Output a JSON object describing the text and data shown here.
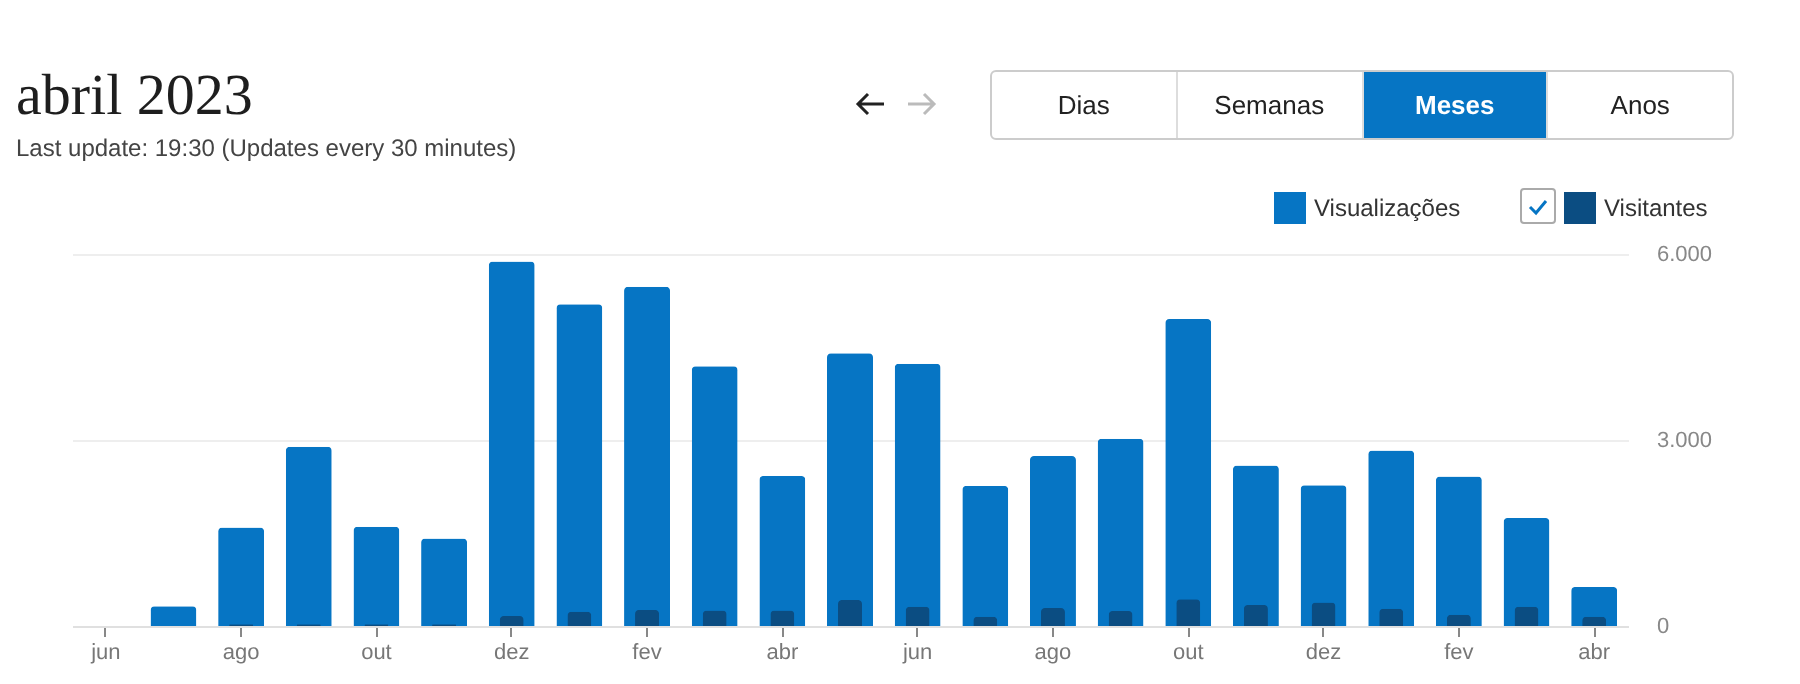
{
  "chart_data": {
    "type": "bar",
    "title": "abril 2023",
    "subtitle": "Last update: 19:30 (Updates every 30 minutes)",
    "categories": [
      "jun",
      null,
      "ago",
      null,
      "out",
      null,
      "dez",
      null,
      "fev",
      null,
      "abr",
      null,
      "jun",
      null,
      "ago",
      null,
      "out",
      null,
      "dez",
      null,
      "fev",
      null,
      "abr"
    ],
    "series": [
      {
        "name": "Visualizações",
        "color": "#0675c4",
        "values": [
          0,
          320,
          1590,
          2890,
          1600,
          1410,
          5880,
          5190,
          5470,
          4190,
          2420,
          4400,
          4230,
          2260,
          2740,
          3020,
          4950,
          2590,
          2270,
          2830,
          2410,
          1740,
          630
        ]
      },
      {
        "name": "Visitantes",
        "color": "#0b4d82",
        "values": [
          0,
          null,
          30,
          30,
          30,
          30,
          160,
          230,
          260,
          250,
          250,
          420,
          310,
          150,
          290,
          240,
          430,
          340,
          380,
          280,
          180,
          310,
          150
        ]
      }
    ],
    "ylim": [
      0,
      6000
    ],
    "yticks": [
      {
        "value": 0,
        "label": "0"
      },
      {
        "value": 3000,
        "label": "3.000"
      },
      {
        "value": 6000,
        "label": "6.000"
      }
    ],
    "grid": "y",
    "legend": "top right",
    "annotations": [
      "Dias",
      "Semanas",
      "Meses",
      "Anos"
    ]
  }
}
